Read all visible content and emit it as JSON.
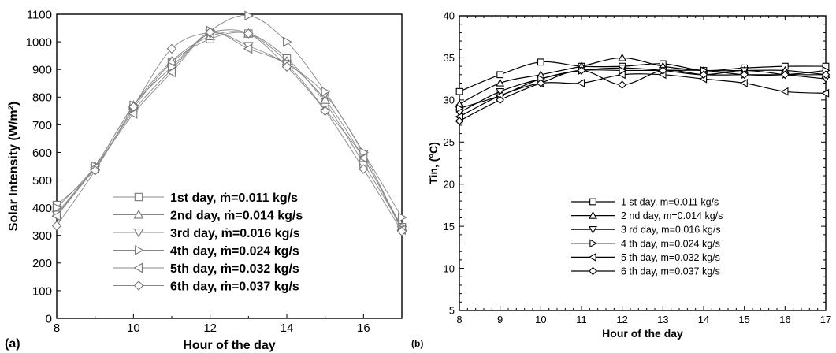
{
  "figure": {
    "panel_a_tag": "(a)",
    "panel_b_tag": "(b)"
  },
  "chart_data": [
    {
      "type": "line",
      "panel": "(a)",
      "xlabel": "Hour of the day",
      "ylabel": "Solar Intensity (W/m²)",
      "xlim": [
        8,
        17
      ],
      "ylim": [
        0,
        1100
      ],
      "xticks": [
        8,
        10,
        12,
        14,
        16
      ],
      "yticks": [
        0,
        100,
        200,
        300,
        400,
        500,
        600,
        700,
        800,
        900,
        1000,
        1100
      ],
      "grid": false,
      "legend_position": "bottom-center",
      "colors": {
        "line": "#888888",
        "marker": "#777777",
        "axis": "#000000"
      },
      "x": [
        8,
        9,
        10,
        11,
        12,
        13,
        14,
        15,
        16,
        17
      ],
      "series": [
        {
          "name": "1st day, ṁ=0.011 kg/s",
          "marker": "square",
          "values": [
            410,
            540,
            760,
            925,
            1010,
            1030,
            940,
            780,
            560,
            330
          ]
        },
        {
          "name": "2nd day, ṁ=0.014 kg/s",
          "marker": "triangle-up",
          "values": [
            380,
            550,
            770,
            930,
            1020,
            1030,
            930,
            790,
            580,
            330
          ]
        },
        {
          "name": "3rd day, ṁ=0.016 kg/s",
          "marker": "triangle-down",
          "values": [
            375,
            545,
            750,
            900,
            1030,
            985,
            920,
            810,
            595,
            320
          ]
        },
        {
          "name": "4th day, ṁ=0.024 kg/s",
          "marker": "triangle-right",
          "values": [
            400,
            550,
            770,
            910,
            1040,
            1095,
            1000,
            820,
            600,
            365
          ]
        },
        {
          "name": "5th day, ṁ=0.032 kg/s",
          "marker": "triangle-left",
          "values": [
            370,
            545,
            740,
            890,
            1030,
            975,
            915,
            755,
            580,
            320
          ]
        },
        {
          "name": "6th day, ṁ=0.037 kg/s",
          "marker": "diamond",
          "values": [
            335,
            535,
            765,
            975,
            1035,
            1030,
            910,
            750,
            540,
            315
          ]
        }
      ]
    },
    {
      "type": "line",
      "panel": "(b)",
      "xlabel": "Hour of the day",
      "ylabel": "Tin, (°C)",
      "xlim": [
        8,
        17
      ],
      "ylim": [
        5,
        40
      ],
      "xticks": [
        8,
        9,
        10,
        11,
        12,
        13,
        14,
        15,
        16,
        17
      ],
      "yticks": [
        5,
        10,
        15,
        20,
        25,
        30,
        35,
        40
      ],
      "grid": false,
      "legend_position": "bottom-center",
      "colors": {
        "line": "#000000",
        "marker": "#000000",
        "axis": "#000000"
      },
      "x": [
        8,
        9,
        10,
        11,
        12,
        13,
        14,
        15,
        16,
        17
      ],
      "series": [
        {
          "name": "1 st day, m=0.011 kg/s",
          "marker": "square",
          "values": [
            31.0,
            33.0,
            34.5,
            34.0,
            34.0,
            34.3,
            33.5,
            33.8,
            34.0,
            34.0
          ]
        },
        {
          "name": "2 nd day, m=0.014 kg/s",
          "marker": "triangle-up",
          "values": [
            29.5,
            32.0,
            33.0,
            34.0,
            35.0,
            34.0,
            33.5,
            33.5,
            33.5,
            33.0
          ]
        },
        {
          "name": "3 rd day, m=0.016 kg/s",
          "marker": "triangle-down",
          "values": [
            28.5,
            31.0,
            32.5,
            33.5,
            33.8,
            33.5,
            33.0,
            33.5,
            33.0,
            32.5
          ]
        },
        {
          "name": "4 th day, m=0.024 kg/s",
          "marker": "triangle-right",
          "values": [
            29.0,
            30.5,
            32.5,
            33.5,
            33.5,
            33.5,
            33.5,
            33.0,
            33.0,
            33.5
          ]
        },
        {
          "name": "5 th day, m=0.032 kg/s",
          "marker": "triangle-left",
          "values": [
            28.0,
            30.5,
            32.0,
            32.0,
            33.0,
            33.0,
            32.5,
            32.0,
            31.0,
            30.8
          ]
        },
        {
          "name": "6 th day, m=0.037 kg/s",
          "marker": "diamond",
          "values": [
            27.5,
            30.0,
            32.0,
            33.5,
            31.8,
            33.5,
            33.0,
            33.0,
            33.0,
            33.0
          ]
        }
      ]
    }
  ]
}
